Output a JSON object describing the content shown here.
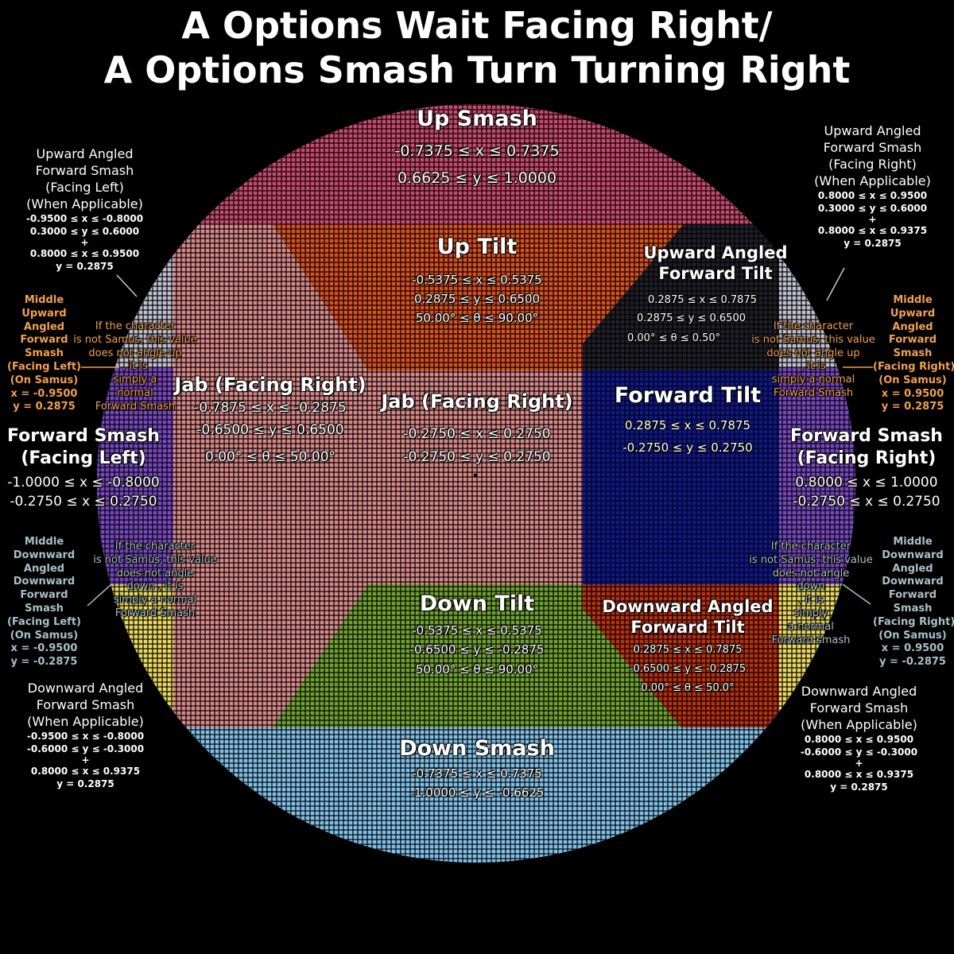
{
  "title": {
    "line1": "A Options Wait Facing Right/",
    "line2": "A Options Smash Turn Turning Right"
  },
  "colors": {
    "up_smash": "#c84870",
    "up_tilt": "#d85020",
    "jab": "#d88888",
    "upward_angled_forward_tilt": "#202028",
    "forward_tilt": "#101890",
    "forward_smash": "#7848c0",
    "middle_upward": "#c0c0d0",
    "middle_downward": "#e8d860",
    "down_tilt": "#70a030",
    "downward_angled_forward_tilt": "#b83010",
    "down_smash": "#80c0e8",
    "grid_line": "#000000"
  },
  "regions": {
    "up_smash": {
      "name": "Up Smash",
      "x": "-0.7375 ≤ x ≤ 0.7375",
      "y": "0.6625 ≤ y ≤ 1.0000"
    },
    "up_tilt": {
      "name": "Up Tilt",
      "x": "-0.5375 ≤ x ≤ 0.5375",
      "y": "0.2875 ≤ y ≤ 0.6500",
      "angle": "50.00° ≤ θ ≤ 90.00°"
    },
    "jab_outer": {
      "name": "Jab (Facing Right)",
      "x": "-0.7875 ≤ x ≤ -0.2875",
      "y": "-0.6500 ≤ y ≤ 0.6500",
      "angle": "0.00° ≤ θ ≤ 50.00°"
    },
    "jab_center": {
      "name": "Jab (Facing Right)",
      "x": "-0.2750 ≤ x ≤ 0.2750",
      "y": "-0.2750 ≤ y ≤ 0.2750"
    },
    "upward_angled_forward_tilt": {
      "line1": "Upward Angled",
      "line2": "Forward Tilt",
      "x": "0.2875  ≤ x ≤ 0.7875",
      "y": "0.2875  ≤ y ≤ 0.6500",
      "angle": "0.00°  ≤ θ ≤ 0.50°"
    },
    "forward_tilt": {
      "name": "Forward Tilt",
      "x": "0.2875 ≤ x ≤ 0.7875",
      "y": "-0.2750 ≤ y ≤ 0.2750"
    },
    "forward_smash_left": {
      "line1": "Forward Smash",
      "line2": "(Facing Left)",
      "x": "-1.0000 ≤ x ≤ -0.8000",
      "y": "-0.2750 ≤ x ≤ 0.2750"
    },
    "forward_smash_right": {
      "line1": "Forward Smash",
      "line2": "(Facing Right)",
      "x": "0.8000 ≤ x ≤ 1.0000",
      "y": "-0.2750 ≤ x ≤ 0.2750"
    },
    "down_tilt": {
      "name": "Down Tilt",
      "x": "-0.5375  ≤ x ≤ 0.5375",
      "y": "-0.6500 ≤ y ≤ -0.2875",
      "angle": "50.00° ≤ θ ≤ 90.00°"
    },
    "downward_angled_forward_tilt": {
      "line1": "Downward Angled",
      "line2": "Forward Tilt",
      "x": "0.2875  ≤ x ≤ 0.7875",
      "y": "-0.6500  ≤ y ≤ -0.2875",
      "angle": "0.00°  ≤ θ ≤ 50.0°"
    },
    "down_smash": {
      "name": "Down Smash",
      "x": "-0.7375 ≤ x ≤ 0.7375",
      "y": "-1.0000 ≤ y ≤ -0.6625"
    }
  },
  "side_notes": {
    "upward_fsmash_left": {
      "l1": "Upward Angled",
      "l2": "Forward Smash",
      "l3": "(Facing Left)",
      "l4": "(When Applicable)",
      "v1": "-0.9500 ≤ x ≤ -0.8000",
      "v2": "0.3000 ≤ y ≤ 0.6000",
      "v3": "+",
      "v4": "0.8000 ≤ x ≤ 0.9500",
      "v5": "y = 0.2875"
    },
    "upward_fsmash_right": {
      "l1": "Upward Angled",
      "l2": "Forward Smash",
      "l3": "(Facing Right)",
      "l4": "(When Applicable)",
      "v1": "0.8000 ≤ x ≤ 0.9500",
      "v2": "0.3000 ≤ y ≤ 0.6000",
      "v3": "+",
      "v4": "0.8000 ≤ x ≤ 0.9375",
      "v5": "y = 0.2875"
    },
    "middle_upward_left": {
      "l1": "Middle",
      "l2": "Upward",
      "l3": "Angled",
      "l4": "Forward",
      "l5": "Smash",
      "l6": "(Facing Left)",
      "l7": "(On Samus)",
      "v1": "x = -0.9500",
      "v2": "y = 0.2875"
    },
    "middle_upward_right": {
      "l1": "Middle",
      "l2": "Upward",
      "l3": "Angled",
      "l4": "Forward",
      "l5": "Smash",
      "l6": "(Facing Right)",
      "l7": "(On Samus)",
      "v1": "x = 0.9500",
      "v2": "y = 0.2875"
    },
    "samus_up_left": {
      "l1": "If the character",
      "l2": "is not Samus, this value",
      "l3": "does not angle up",
      "l4": ", it is",
      "l5": "simply a",
      "l6": "normal",
      "l7": "Forward Smash"
    },
    "samus_up_right": {
      "l1": "If the character",
      "l2": "is not Samus, this value",
      "l3": "does not angle up",
      "l4": ", it is",
      "l5": "simply a normal",
      "l6": "Forward Smash"
    },
    "middle_downward_left": {
      "l1": "Middle",
      "l2": "Downward",
      "l3": "Angled",
      "l4": "Downward",
      "l5": "Forward",
      "l6": "Smash",
      "l7": "(Facing Left)",
      "l8": "(On Samus)",
      "v1": "x = -0.9500",
      "v2": "y = -0.2875"
    },
    "middle_downward_right": {
      "l1": "Middle",
      "l2": "Downward",
      "l3": "Angled",
      "l4": "Downward",
      "l5": "Forward",
      "l6": "Smash",
      "l7": "(Facing Right)",
      "l8": "(On Samus)",
      "v1": "x = 0.9500",
      "v2": "y = -0.2875"
    },
    "samus_down_left": {
      "l1": "If the character",
      "l2": "is not Samus, this value",
      "l3": "does not angle",
      "l4": "down , it is",
      "l5": "simply a normal",
      "l6": "Forward Smash"
    },
    "samus_down_right": {
      "l1": "If the character",
      "l2": "is not Samus, this value",
      "l3": "does not angle",
      "l4": "down",
      "l5": ", it is",
      "l6": "simply",
      "l7": "a normal",
      "l8": "Forward smash"
    },
    "downward_fsmash_left": {
      "l1": "Downward Angled",
      "l2": "Forward Smash",
      "l3": "(When Applicable)",
      "v1": "-0.9500 ≤ x ≤ -0.8000",
      "v2": "-0.6000 ≤ y ≤ -0.3000",
      "v3": "+",
      "v4": "0.8000 ≤ x ≤ 0.9375",
      "v5": "y = 0.2875"
    },
    "downward_fsmash_right": {
      "l1": "Downward Angled",
      "l2": "Forward Smash",
      "l3": "(When Applicable)",
      "v1": "0.8000 ≤ x ≤ 0.9500",
      "v2": "-0.6000 ≤ y ≤ -0.3000",
      "v3": "+",
      "v4": "0.8000 ≤ x ≤ 0.9375",
      "v5": "y = 0.2875"
    }
  }
}
